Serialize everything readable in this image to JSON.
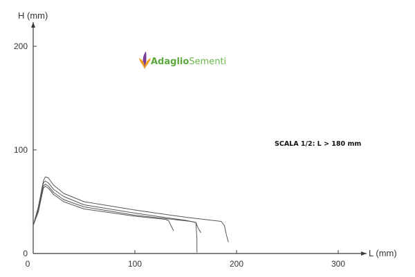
{
  "logo": {
    "brand_strong": "Adaglio",
    "brand_light": "Sementi",
    "colors": {
      "strong": "#5aa83c",
      "light": "#6bb84c",
      "leaf_purple": "#7a3f98",
      "leaf_orange": "#f0a020"
    }
  },
  "chart_data": {
    "type": "line",
    "title": "",
    "xlabel": "L (mm)",
    "ylabel": "H (mm)",
    "xlim": [
      0,
      325
    ],
    "ylim": [
      0,
      225
    ],
    "x_ticks": [
      0,
      100,
      200,
      300
    ],
    "y_ticks": [
      0,
      100,
      200
    ],
    "x_tick_labels": [
      "0",
      "100",
      "200",
      "300"
    ],
    "y_tick_labels": [
      "0",
      "100",
      "200"
    ],
    "grid": false,
    "annotation": "SCALA 1/2: L > 180 mm",
    "line_color": "#555555",
    "series": [
      {
        "points": [
          [
            0,
            27
          ],
          [
            5,
            45
          ],
          [
            10,
            70
          ],
          [
            12,
            74
          ],
          [
            15,
            73
          ],
          [
            20,
            66
          ],
          [
            30,
            58
          ],
          [
            50,
            50
          ],
          [
            100,
            42
          ],
          [
            150,
            35
          ],
          [
            185,
            31
          ],
          [
            188,
            27
          ],
          [
            190,
            18
          ],
          [
            192,
            11
          ]
        ]
      },
      {
        "points": [
          [
            0,
            27
          ],
          [
            5,
            44
          ],
          [
            10,
            68
          ],
          [
            12,
            70
          ],
          [
            15,
            68
          ],
          [
            20,
            62
          ],
          [
            30,
            55
          ],
          [
            50,
            47
          ],
          [
            100,
            39
          ],
          [
            150,
            32
          ],
          [
            160,
            30
          ],
          [
            162,
            25
          ],
          [
            165,
            20
          ]
        ]
      },
      {
        "points": [
          [
            0,
            27
          ],
          [
            5,
            42
          ],
          [
            10,
            65
          ],
          [
            12,
            67
          ],
          [
            15,
            65
          ],
          [
            20,
            59
          ],
          [
            30,
            52
          ],
          [
            50,
            45
          ],
          [
            100,
            37
          ],
          [
            155,
            31
          ],
          [
            160,
            30
          ],
          [
            161,
            15
          ],
          [
            161,
            1
          ]
        ]
      },
      {
        "points": [
          [
            0,
            27
          ],
          [
            5,
            40
          ],
          [
            10,
            63
          ],
          [
            12,
            65
          ],
          [
            15,
            63
          ],
          [
            20,
            57
          ],
          [
            30,
            50
          ],
          [
            50,
            43
          ],
          [
            100,
            36
          ],
          [
            130,
            33
          ],
          [
            133,
            32
          ],
          [
            135,
            28
          ],
          [
            138,
            22
          ]
        ]
      }
    ]
  }
}
